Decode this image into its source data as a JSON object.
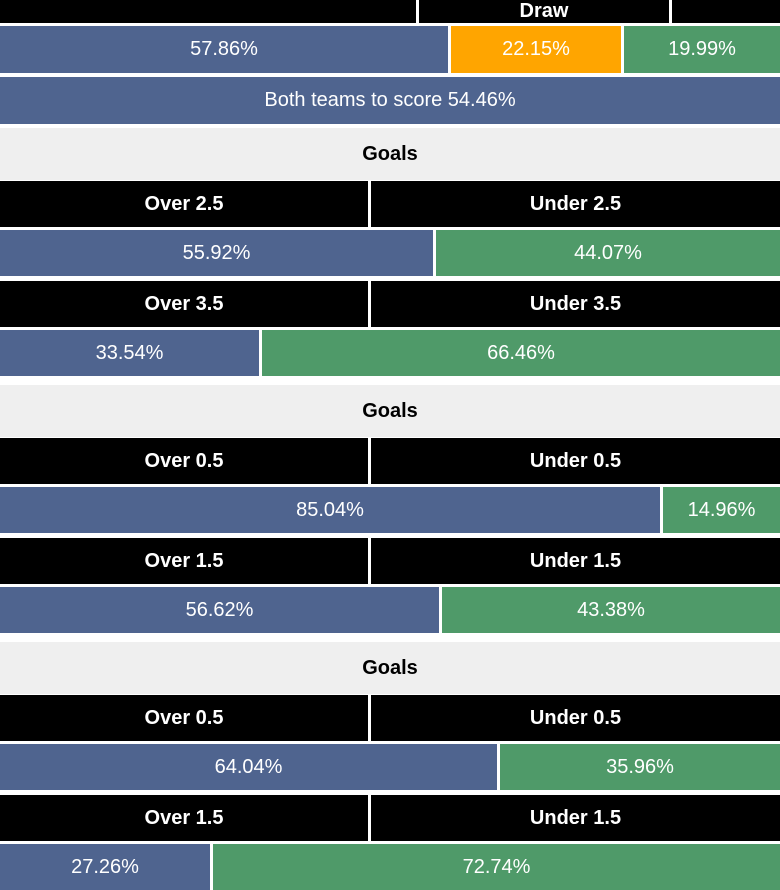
{
  "colors": {
    "blue": "#4f648f",
    "orange": "#ffa500",
    "green": "#4f9a69",
    "header": "#000000",
    "section_bg": "#efefef"
  },
  "top": {
    "draw_label": "Draw",
    "home_pct": "57.86%",
    "draw_pct": "22.15%",
    "away_pct": "19.99%",
    "home_frac": 0.5786,
    "draw_frac": 0.2215,
    "away_frac": 0.1999
  },
  "btts": {
    "label": "Both teams to score 54.46%"
  },
  "sections": [
    {
      "title": "Goals",
      "markets": [
        {
          "over_label": "Over 2.5",
          "under_label": "Under 2.5",
          "over_pct": "55.92%",
          "under_pct": "44.07%",
          "over_frac": 0.5592
        },
        {
          "over_label": "Over 3.5",
          "under_label": "Under 3.5",
          "over_pct": "33.54%",
          "under_pct": "66.46%",
          "over_frac": 0.3354
        }
      ]
    },
    {
      "title": "Goals",
      "markets": [
        {
          "over_label": "Over 0.5",
          "under_label": "Under 0.5",
          "over_pct": "85.04%",
          "under_pct": "14.96%",
          "over_frac": 0.8504
        },
        {
          "over_label": "Over 1.5",
          "under_label": "Under 1.5",
          "over_pct": "56.62%",
          "under_pct": "43.38%",
          "over_frac": 0.5662
        }
      ]
    },
    {
      "title": "Goals",
      "markets": [
        {
          "over_label": "Over 0.5",
          "under_label": "Under 0.5",
          "over_pct": "64.04%",
          "under_pct": "35.96%",
          "over_frac": 0.6404
        },
        {
          "over_label": "Over 1.5",
          "under_label": "Under 1.5",
          "over_pct": "27.26%",
          "under_pct": "72.74%",
          "over_frac": 0.2726
        }
      ]
    }
  ]
}
